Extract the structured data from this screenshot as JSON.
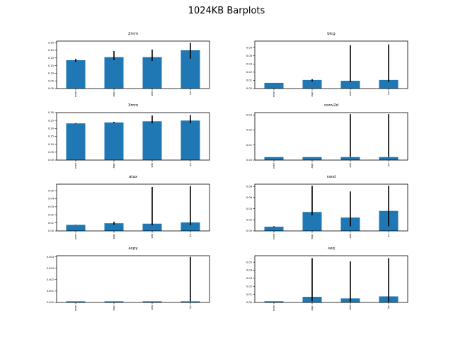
{
  "figure": {
    "title": "1024KB Barplots",
    "bar_color": "#1f77b4",
    "error_color": "#000000"
  },
  "chart_data": [
    {
      "type": "bar",
      "title": "2mm",
      "xlabel": "",
      "ylabel": "",
      "categories": [
        "none",
        "aspy",
        "seid",
        "lyn"
      ],
      "values": [
        0.185,
        0.205,
        0.205,
        0.25
      ],
      "error_low": [
        0.175,
        0.185,
        0.18,
        0.195
      ],
      "error_high": [
        0.195,
        0.245,
        0.255,
        0.298
      ],
      "ylim": [
        0,
        0.31
      ],
      "yticks": [
        "0.00",
        "0.05",
        "0.10",
        "0.15",
        "0.20",
        "0.25",
        "0.30"
      ],
      "ytick_values": [
        0,
        0.05,
        0.1,
        0.15,
        0.2,
        0.25,
        0.3
      ]
    },
    {
      "type": "bar",
      "title": "blcg",
      "xlabel": "",
      "ylabel": "",
      "categories": [
        "none",
        "aspy",
        "seid",
        "lyn"
      ],
      "values": [
        0.007,
        0.0105,
        0.0095,
        0.0105
      ],
      "error_low": [
        0.007,
        0.0085,
        0.008,
        0.008
      ],
      "error_high": [
        0.007,
        0.0115,
        0.053,
        0.054
      ],
      "ylim": [
        0,
        0.058
      ],
      "yticks": [
        "0.00",
        "0.01",
        "0.02",
        "0.03",
        "0.04",
        "0.05"
      ],
      "ytick_values": [
        0,
        0.01,
        0.02,
        0.03,
        0.04,
        0.05
      ]
    },
    {
      "type": "bar",
      "title": "3mm",
      "xlabel": "",
      "ylabel": "",
      "categories": [
        "none",
        "aspy",
        "seid",
        "lyn"
      ],
      "values": [
        0.232,
        0.238,
        0.245,
        0.25
      ],
      "error_low": [
        0.23,
        0.234,
        0.232,
        0.232
      ],
      "error_high": [
        0.234,
        0.242,
        0.282,
        0.285
      ],
      "ylim": [
        0,
        0.3
      ],
      "yticks": [
        "0.00",
        "0.05",
        "0.10",
        "0.15",
        "0.20",
        "0.25",
        "0.30"
      ],
      "ytick_values": [
        0,
        0.05,
        0.1,
        0.15,
        0.2,
        0.25,
        0.3
      ]
    },
    {
      "type": "bar",
      "title": "conv2d",
      "xlabel": "",
      "ylabel": "",
      "categories": [
        "none",
        "aspy",
        "seid",
        "lyn"
      ],
      "values": [
        0.002,
        0.002,
        0.002,
        0.002
      ],
      "error_low": [
        0.002,
        0.002,
        0.002,
        0.002
      ],
      "error_high": [
        0.002,
        0.002,
        0.0305,
        0.0305
      ],
      "ylim": [
        0,
        0.0315
      ],
      "yticks": [
        "0.00",
        "0.01",
        "0.02",
        "0.03"
      ],
      "ytick_values": [
        0,
        0.01,
        0.02,
        0.03
      ]
    },
    {
      "type": "bar",
      "title": "atax",
      "xlabel": "",
      "ylabel": "",
      "categories": [
        "none",
        "aspy",
        "seid",
        "lyn"
      ],
      "values": [
        0.0075,
        0.0095,
        0.009,
        0.0105
      ],
      "error_low": [
        0.0073,
        0.0075,
        0.007,
        0.007
      ],
      "error_high": [
        0.0077,
        0.0115,
        0.0545,
        0.0555
      ],
      "ylim": [
        0,
        0.058
      ],
      "yticks": [
        "0.00",
        "0.01",
        "0.02",
        "0.03",
        "0.04",
        "0.05"
      ],
      "ytick_values": [
        0,
        0.01,
        0.02,
        0.03,
        0.04,
        0.05
      ]
    },
    {
      "type": "bar",
      "title": "rand",
      "xlabel": "",
      "ylabel": "",
      "categories": [
        "none",
        "aspy",
        "seid",
        "lyn"
      ],
      "values": [
        0.0075,
        0.034,
        0.024,
        0.036
      ],
      "error_low": [
        0.0065,
        0.028,
        0.008,
        0.008
      ],
      "error_high": [
        0.0085,
        0.081,
        0.071,
        0.081
      ],
      "ylim": [
        0,
        0.084
      ],
      "yticks": [
        "0.00",
        "0.02",
        "0.04",
        "0.06",
        "0.08"
      ],
      "ytick_values": [
        0,
        0.02,
        0.04,
        0.06,
        0.08
      ]
    },
    {
      "type": "bar",
      "title": "axpy",
      "xlabel": "",
      "ylabel": "",
      "categories": [
        "none",
        "aspy",
        "seid",
        "lyn"
      ],
      "values": [
        0.0001,
        0.0001,
        0.0001,
        0.0001
      ],
      "error_low": [
        0.0001,
        0.0001,
        0.0001,
        0.0001
      ],
      "error_high": [
        0.0001,
        0.0001,
        0.0001,
        0.004
      ],
      "ylim": [
        0,
        0.0041
      ],
      "yticks": [
        "0.000",
        "0.001",
        "0.002",
        "0.003",
        "0.004"
      ],
      "ytick_values": [
        0,
        0.001,
        0.002,
        0.003,
        0.004
      ]
    },
    {
      "type": "bar",
      "title": "seq",
      "xlabel": "",
      "ylabel": "",
      "categories": [
        "none",
        "aspy",
        "seid",
        "lyn"
      ],
      "values": [
        0.0015,
        0.007,
        0.005,
        0.0075
      ],
      "error_low": [
        0.0015,
        0.0015,
        0.001,
        0.001
      ],
      "error_high": [
        0.0015,
        0.055,
        0.051,
        0.055
      ],
      "ylim": [
        0,
        0.058
      ],
      "yticks": [
        "0.00",
        "0.01",
        "0.02",
        "0.03",
        "0.04",
        "0.05"
      ],
      "ytick_values": [
        0,
        0.01,
        0.02,
        0.03,
        0.04,
        0.05
      ]
    }
  ]
}
